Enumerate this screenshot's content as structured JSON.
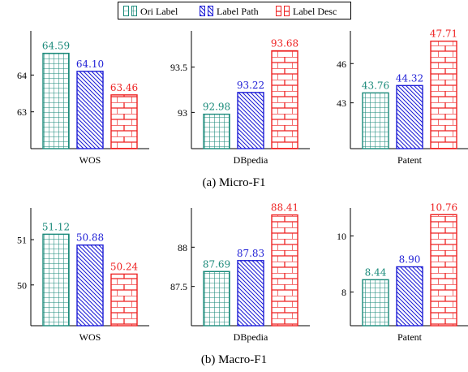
{
  "legend": [
    {
      "label": "Ori Label",
      "color": "#1a8a7a",
      "pattern": "grid"
    },
    {
      "label": "Label Path",
      "color": "#1f1fd6",
      "pattern": "diagonal"
    },
    {
      "label": "Label Desc",
      "color": "#ee2222",
      "pattern": "brick"
    }
  ],
  "captions": {
    "micro": "(a) Micro-F1",
    "macro": "(b) Macro-F1"
  },
  "chart_data": [
    {
      "type": "bar",
      "group": "Micro-F1",
      "xlabel": "WOS",
      "categories": [
        "Ori Label",
        "Label Path",
        "Label Desc"
      ],
      "values": [
        64.59,
        64.1,
        63.46
      ],
      "value_labels": [
        "64.59",
        "64.10",
        "63.46"
      ],
      "ylim": [
        62.0,
        65.2
      ],
      "yticks": [
        63,
        64
      ],
      "ytick_labels": [
        "63",
        "64"
      ]
    },
    {
      "type": "bar",
      "group": "Micro-F1",
      "xlabel": "DBpedia",
      "categories": [
        "Ori Label",
        "Label Path",
        "Label Desc"
      ],
      "values": [
        92.98,
        93.22,
        93.68
      ],
      "value_labels": [
        "92.98",
        "93.22",
        "93.68"
      ],
      "ylim": [
        92.6,
        93.9
      ],
      "yticks": [
        93,
        93.5
      ],
      "ytick_labels": [
        "93",
        "93.5"
      ]
    },
    {
      "type": "bar",
      "group": "Micro-F1",
      "xlabel": "Patent",
      "categories": [
        "Ori Label",
        "Label Path",
        "Label Desc"
      ],
      "values": [
        43.76,
        44.32,
        47.71
      ],
      "value_labels": [
        "43.76",
        "44.32",
        "47.71"
      ],
      "ylim": [
        39.5,
        48.5
      ],
      "yticks": [
        43,
        46
      ],
      "ytick_labels": [
        "43",
        "46"
      ]
    },
    {
      "type": "bar",
      "group": "Macro-F1",
      "xlabel": "WOS",
      "categories": [
        "Ori Label",
        "Label Path",
        "Label Desc"
      ],
      "values": [
        51.12,
        50.88,
        50.24
      ],
      "value_labels": [
        "51.12",
        "50.88",
        "50.24"
      ],
      "ylim": [
        49.1,
        51.7
      ],
      "yticks": [
        50,
        51
      ],
      "ytick_labels": [
        "50",
        "51"
      ]
    },
    {
      "type": "bar",
      "group": "Macro-F1",
      "xlabel": "DBpedia",
      "categories": [
        "Ori Label",
        "Label Path",
        "Label Desc"
      ],
      "values": [
        87.69,
        87.83,
        88.41
      ],
      "value_labels": [
        "87.69",
        "87.83",
        "88.41"
      ],
      "ylim": [
        87.0,
        88.5
      ],
      "yticks": [
        87.5,
        88
      ],
      "ytick_labels": [
        "87.5",
        "88"
      ]
    },
    {
      "type": "bar",
      "group": "Macro-F1",
      "xlabel": "Patent",
      "categories": [
        "Ori Label",
        "Label Path",
        "Label Desc"
      ],
      "values": [
        8.44,
        8.9,
        10.76
      ],
      "value_labels": [
        "8.44",
        "8.90",
        "10.76"
      ],
      "ylim": [
        6.8,
        11.0
      ],
      "yticks": [
        8,
        10
      ],
      "ytick_labels": [
        "8",
        "10"
      ]
    }
  ]
}
